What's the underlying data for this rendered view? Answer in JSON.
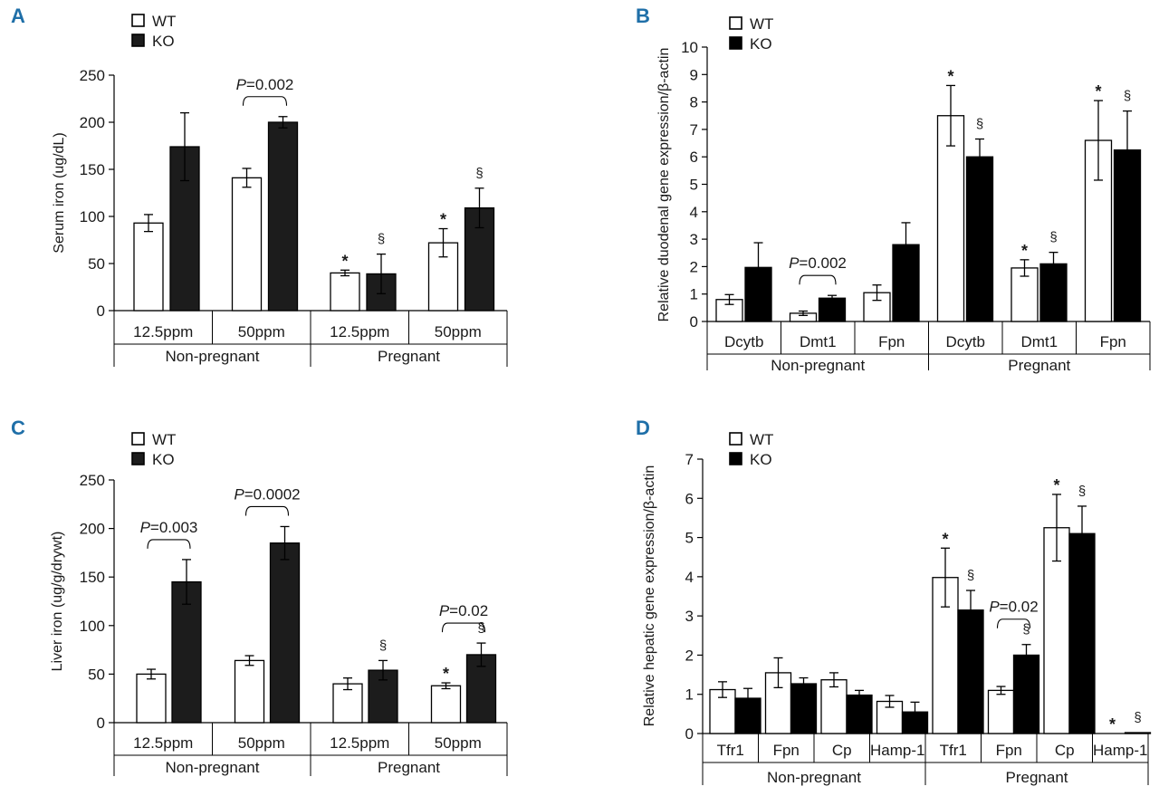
{
  "chart_data": [
    {
      "panel": "A",
      "type": "bar",
      "ylabel": "Serum iron (ug/dL)",
      "ylim": [
        0,
        250
      ],
      "yticks": [
        0,
        50,
        100,
        150,
        200,
        250
      ],
      "categories": [
        "12.5ppm",
        "50ppm",
        "12.5ppm",
        "50ppm"
      ],
      "groups": [
        {
          "label": "Non-pregnant",
          "span": [
            0,
            1
          ]
        },
        {
          "label": "Pregnant",
          "span": [
            2,
            3
          ]
        }
      ],
      "legend": [
        "WT",
        "KO"
      ],
      "series": [
        {
          "name": "WT",
          "fill": "#ffffff",
          "values": [
            93,
            141,
            40,
            72
          ],
          "errors": [
            9,
            10,
            3,
            15
          ]
        },
        {
          "name": "KO",
          "fill": "#1c1c1c",
          "values": [
            174,
            200,
            39,
            109
          ],
          "errors": [
            36,
            6,
            21,
            21
          ]
        }
      ],
      "markers": [
        {
          "series": 0,
          "cat": 2,
          "symbol": "*"
        },
        {
          "series": 1,
          "cat": 2,
          "symbol": "§"
        },
        {
          "series": 0,
          "cat": 3,
          "symbol": "*"
        },
        {
          "series": 1,
          "cat": 3,
          "symbol": "§"
        }
      ],
      "brackets": [
        {
          "cat": 1,
          "italic": "P",
          "rest": "=0.002"
        }
      ]
    },
    {
      "panel": "B",
      "type": "bar",
      "ylabel": "Relative duodenal gene expression/β-actin",
      "ylim": [
        0,
        10
      ],
      "yticks": [
        0,
        1,
        2,
        3,
        4,
        5,
        6,
        7,
        8,
        9,
        10
      ],
      "categories": [
        "Dcytb",
        "Dmt1",
        "Fpn",
        "Dcytb",
        "Dmt1",
        "Fpn"
      ],
      "groups": [
        {
          "label": "Non-pregnant",
          "span": [
            0,
            2
          ]
        },
        {
          "label": "Pregnant",
          "span": [
            3,
            5
          ]
        }
      ],
      "legend": [
        "WT",
        "KO"
      ],
      "series": [
        {
          "name": "WT",
          "fill": "#ffffff",
          "values": [
            0.8,
            0.3,
            1.05,
            7.5,
            1.95,
            6.6
          ],
          "errors": [
            0.18,
            0.08,
            0.28,
            1.1,
            0.3,
            1.45
          ]
        },
        {
          "name": "KO",
          "fill": "#000000",
          "values": [
            1.97,
            0.85,
            2.8,
            6.0,
            2.1,
            6.25
          ],
          "errors": [
            0.9,
            0.1,
            0.8,
            0.65,
            0.42,
            1.42
          ]
        }
      ],
      "markers": [
        {
          "series": 0,
          "cat": 3,
          "symbol": "*"
        },
        {
          "series": 1,
          "cat": 3,
          "symbol": "§"
        },
        {
          "series": 0,
          "cat": 4,
          "symbol": "*"
        },
        {
          "series": 1,
          "cat": 4,
          "symbol": "§"
        },
        {
          "series": 0,
          "cat": 5,
          "symbol": "*"
        },
        {
          "series": 1,
          "cat": 5,
          "symbol": "§"
        }
      ],
      "brackets": [
        {
          "cat": 1,
          "italic": "P",
          "rest": "=0.002"
        }
      ]
    },
    {
      "panel": "C",
      "type": "bar",
      "ylabel": "Liver iron (ug/g/drywt)",
      "ylim": [
        0,
        250
      ],
      "yticks": [
        0,
        50,
        100,
        150,
        200,
        250
      ],
      "categories": [
        "12.5ppm",
        "50ppm",
        "12.5ppm",
        "50ppm"
      ],
      "groups": [
        {
          "label": "Non-pregnant",
          "span": [
            0,
            1
          ]
        },
        {
          "label": "Pregnant",
          "span": [
            2,
            3
          ]
        }
      ],
      "legend": [
        "WT",
        "KO"
      ],
      "series": [
        {
          "name": "WT",
          "fill": "#ffffff",
          "values": [
            50,
            64,
            40,
            38
          ],
          "errors": [
            5,
            5,
            6,
            3
          ]
        },
        {
          "name": "KO",
          "fill": "#1c1c1c",
          "values": [
            145,
            185,
            54,
            70
          ],
          "errors": [
            23,
            17,
            10,
            12
          ]
        }
      ],
      "markers": [
        {
          "series": 1,
          "cat": 2,
          "symbol": "§"
        },
        {
          "series": 0,
          "cat": 3,
          "symbol": "*"
        },
        {
          "series": 1,
          "cat": 3,
          "symbol": "§"
        }
      ],
      "brackets": [
        {
          "cat": 0,
          "italic": "P",
          "rest": "=0.003"
        },
        {
          "cat": 1,
          "italic": "P",
          "rest": "=0.0002"
        },
        {
          "cat": 3,
          "italic": "P",
          "rest": "=0.02"
        }
      ]
    },
    {
      "panel": "D",
      "type": "bar",
      "ylabel": "Relative hepatic gene expression/β-actin",
      "ylim": [
        0,
        7
      ],
      "yticks": [
        0,
        1,
        2,
        3,
        4,
        5,
        6,
        7
      ],
      "categories": [
        "Tfr1",
        "Fpn",
        "Cp",
        "Hamp-1",
        "Tfr1",
        "Fpn",
        "Cp",
        "Hamp-1"
      ],
      "groups": [
        {
          "label": "Non-pregnant",
          "span": [
            0,
            3
          ]
        },
        {
          "label": "Pregnant",
          "span": [
            4,
            7
          ]
        }
      ],
      "legend": [
        "WT",
        "KO"
      ],
      "series": [
        {
          "name": "WT",
          "fill": "#ffffff",
          "values": [
            1.12,
            1.55,
            1.37,
            0.82,
            3.98,
            1.1,
            5.25,
            0
          ],
          "errors": [
            0.2,
            0.38,
            0.18,
            0.15,
            0.75,
            0.1,
            0.85,
            0
          ]
        },
        {
          "name": "KO",
          "fill": "#000000",
          "values": [
            0.9,
            1.27,
            0.98,
            0.55,
            3.15,
            2.0,
            5.1,
            0.02
          ],
          "errors": [
            0.25,
            0.15,
            0.12,
            0.25,
            0.5,
            0.27,
            0.7,
            0
          ]
        }
      ],
      "markers": [
        {
          "series": 0,
          "cat": 4,
          "symbol": "*"
        },
        {
          "series": 1,
          "cat": 4,
          "symbol": "§"
        },
        {
          "series": 1,
          "cat": 5,
          "symbol": "§"
        },
        {
          "series": 0,
          "cat": 6,
          "symbol": "*"
        },
        {
          "series": 1,
          "cat": 6,
          "symbol": "§"
        },
        {
          "series": 0,
          "cat": 7,
          "symbol": "*"
        },
        {
          "series": 1,
          "cat": 7,
          "symbol": "§"
        }
      ],
      "brackets": [
        {
          "cat": 5,
          "italic": "P",
          "rest": "=0.02"
        }
      ]
    }
  ]
}
